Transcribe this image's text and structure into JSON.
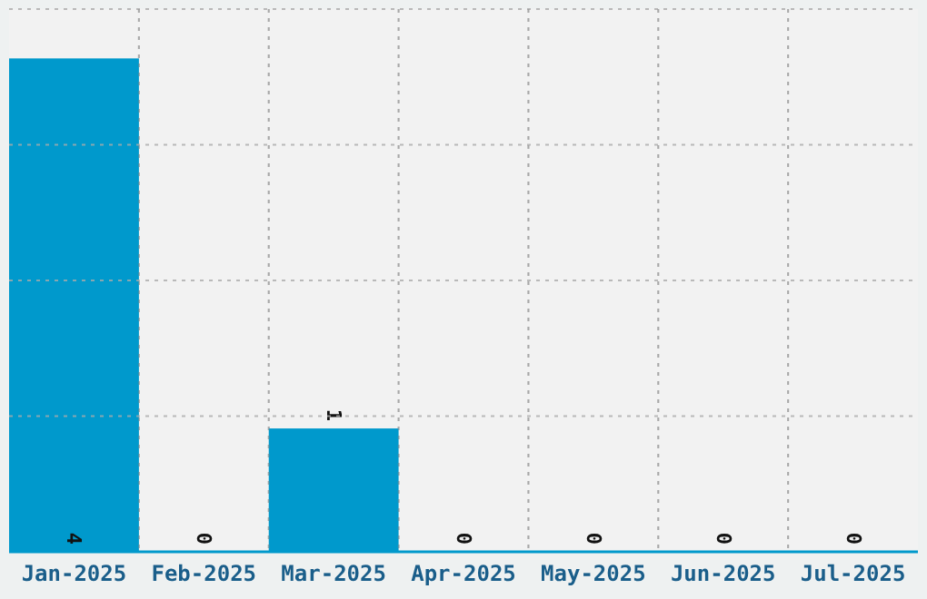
{
  "chart_data": {
    "type": "bar",
    "categories": [
      "Jan-2025",
      "Feb-2025",
      "Mar-2025",
      "Apr-2025",
      "May-2025",
      "Jun-2025",
      "Jul-2025"
    ],
    "values": [
      4,
      0,
      1,
      0,
      0,
      0,
      0
    ],
    "color": "#0099cc",
    "ylim": [
      0,
      4.4
    ],
    "yticks": [
      {
        "value": 1.1,
        "label": null
      },
      {
        "value": 2.2,
        "label": null
      },
      {
        "value": 3.3,
        "label": null
      },
      {
        "value": 4.4,
        "label": null
      }
    ],
    "grid": true,
    "tick_labels": "x",
    "data_labels": true
  }
}
